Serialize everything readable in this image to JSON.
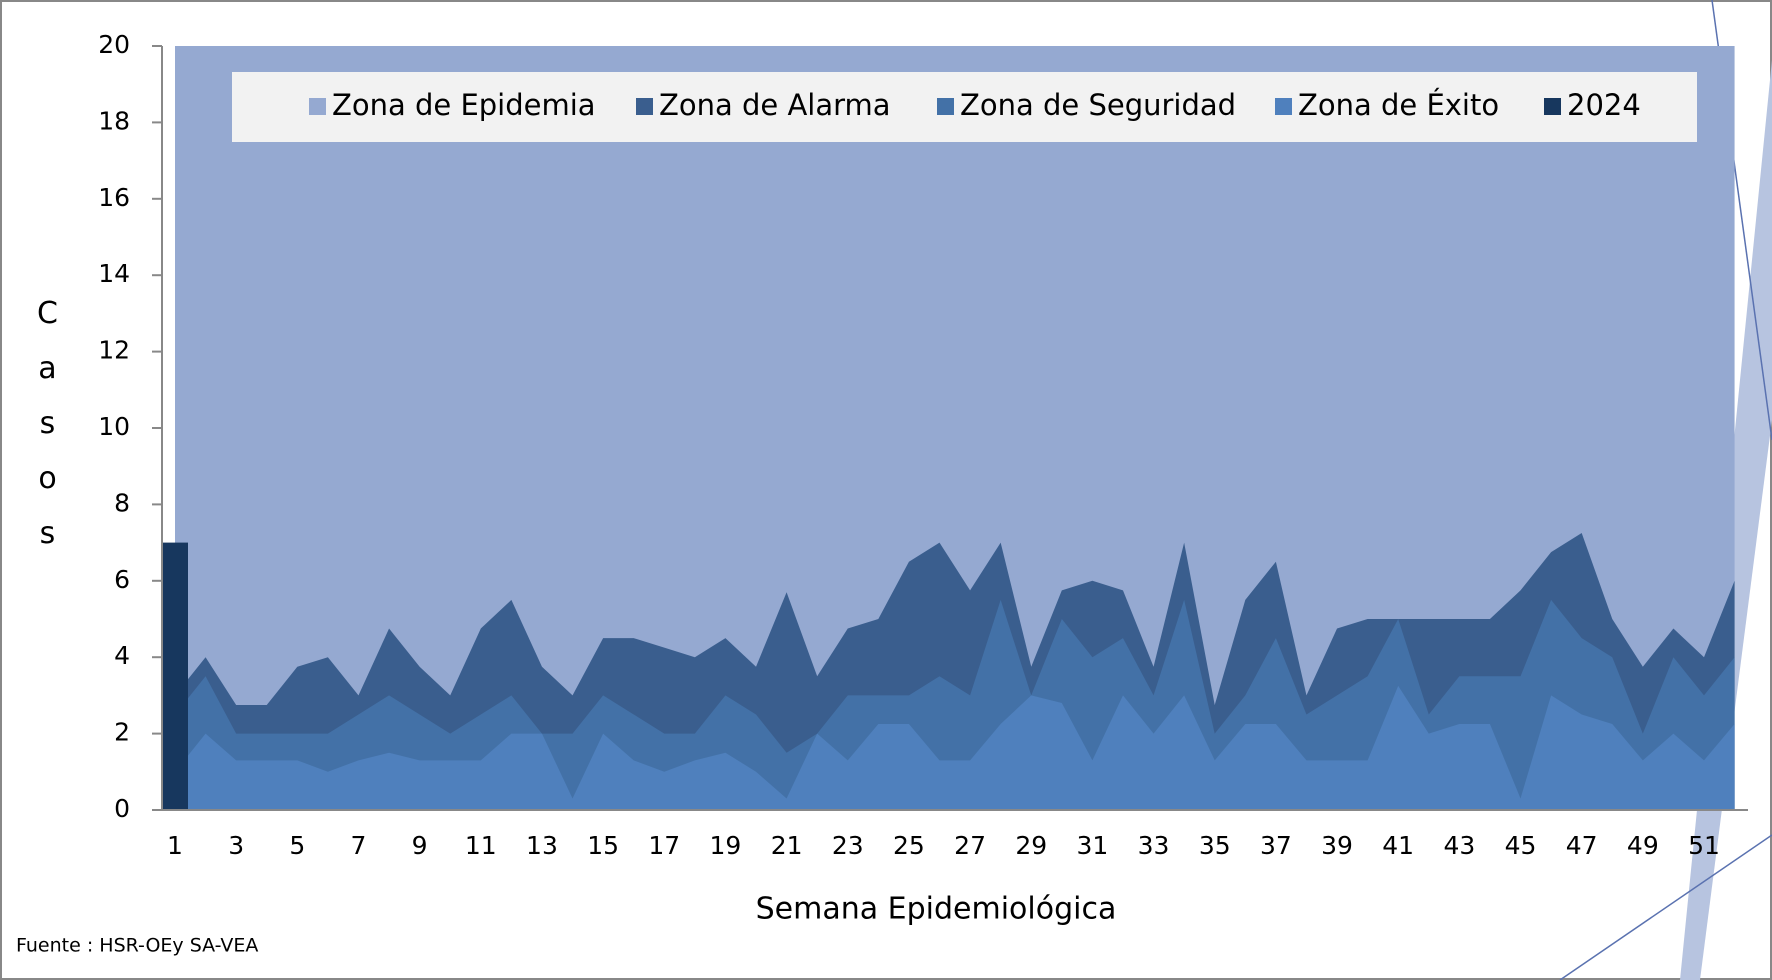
{
  "chart_data": {
    "type": "area",
    "y_label": "Casos",
    "x_label": "Semana  Epidemiológica",
    "source": "Fuente : HSR-OEy SA-VEA",
    "categories": [
      1,
      null,
      3,
      null,
      5,
      null,
      7,
      null,
      9,
      null,
      11,
      null,
      13,
      null,
      15,
      null,
      17,
      null,
      19,
      null,
      21,
      null,
      23,
      null,
      25,
      null,
      27,
      null,
      29,
      null,
      31,
      null,
      33,
      null,
      35,
      null,
      37,
      null,
      39,
      null,
      41,
      null,
      43,
      null,
      45,
      null,
      47,
      null,
      49,
      null,
      51,
      null
    ],
    "ylim": [
      0,
      20
    ],
    "yticks": [
      0,
      2,
      4,
      6,
      8,
      10,
      12,
      14,
      16,
      18,
      20
    ],
    "grid": false,
    "legend": "top",
    "series": [
      {
        "name": "Zona de Epidemia",
        "color": "#95a9d1",
        "values": [
          20,
          20,
          20,
          20,
          20,
          20,
          20,
          20,
          20,
          20,
          20,
          20,
          20,
          20,
          20,
          20,
          20,
          20,
          20,
          20,
          20,
          20,
          20,
          20,
          20,
          20,
          20,
          20,
          20,
          20,
          20,
          20,
          20,
          20,
          20,
          20,
          20,
          20,
          20,
          20,
          20,
          20,
          20,
          20,
          20,
          20,
          20,
          20,
          20,
          20,
          20,
          20
        ]
      },
      {
        "name": "Zona de Alarma",
        "color": "#3a5e8e",
        "values": [
          3,
          4,
          2.75,
          2.75,
          3.75,
          4,
          3,
          4.75,
          3.75,
          3,
          4.75,
          5.5,
          3.75,
          3,
          4.5,
          4.5,
          4.25,
          4,
          4.5,
          3.75,
          5.7,
          3.5,
          4.75,
          5,
          6.5,
          7,
          5.75,
          7,
          3.75,
          5.75,
          6,
          5.75,
          3.75,
          7,
          2.75,
          5.5,
          6.5,
          3,
          4.75,
          5,
          5,
          5,
          5,
          5,
          5.75,
          6.75,
          7.25,
          5,
          3.75,
          4.75,
          4,
          6
        ]
      },
      {
        "name": "Zona de Seguridad",
        "color": "#4371a7",
        "values": [
          2.5,
          3.5,
          2,
          2,
          2,
          2,
          2.5,
          3,
          2.5,
          2,
          2.5,
          3,
          2,
          2,
          3,
          2.5,
          2,
          2,
          3,
          2.5,
          1.5,
          2,
          3,
          3,
          3,
          3.5,
          3,
          5.5,
          3,
          5,
          4,
          4.5,
          3,
          5.5,
          2,
          3,
          4.5,
          2.5,
          3,
          3.5,
          5,
          2.5,
          3.5,
          3.5,
          3.5,
          5.5,
          4.5,
          4,
          2,
          4,
          3,
          4
        ]
      },
      {
        "name": "Zona de Éxito",
        "color": "#4f80bd",
        "values": [
          1,
          2,
          1.3,
          1.3,
          1.3,
          1,
          1.3,
          1.5,
          1.3,
          1.3,
          1.3,
          2,
          2,
          0.3,
          2,
          1.3,
          1,
          1.3,
          1.5,
          1,
          0.3,
          2,
          1.3,
          2.25,
          2.25,
          1.3,
          1.3,
          2.25,
          3,
          2.8,
          1.3,
          3,
          2,
          3,
          1.3,
          2.25,
          2.25,
          1.3,
          1.3,
          1.3,
          3.25,
          2,
          2.25,
          2.25,
          0.3,
          3,
          2.5,
          2.25,
          1.3,
          2,
          1.3,
          2.25
        ]
      },
      {
        "name": "2024",
        "color": "#17375e",
        "kind": "bar",
        "values": [
          7,
          null,
          null,
          null,
          null,
          null,
          null,
          null,
          null,
          null,
          null,
          null,
          null,
          null,
          null,
          null,
          null,
          null,
          null,
          null,
          null,
          null,
          null,
          null,
          null,
          null,
          null,
          null,
          null,
          null,
          null,
          null,
          null,
          null,
          null,
          null,
          null,
          null,
          null,
          null,
          null,
          null,
          null,
          null,
          null,
          null,
          null,
          null,
          null,
          null,
          null,
          null
        ]
      }
    ]
  }
}
